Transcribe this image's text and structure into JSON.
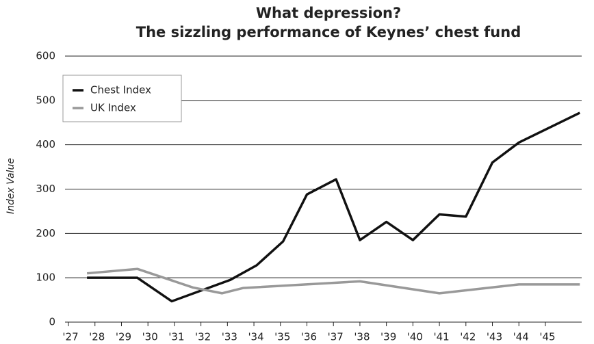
{
  "chart_data": {
    "type": "line",
    "title": "What depression?",
    "subtitle": "The sizzling performance of Keynes’ chest fund",
    "y_label": "Index Value",
    "xlim": [
      1926.87,
      1946.37
    ],
    "ylim": [
      0,
      600
    ],
    "xticks": [
      {
        "value": 1927,
        "label": "'27"
      },
      {
        "value": 1928,
        "label": "'28"
      },
      {
        "value": 1929,
        "label": "'29"
      },
      {
        "value": 1930,
        "label": "'30"
      },
      {
        "value": 1931,
        "label": "'31"
      },
      {
        "value": 1932,
        "label": "'32"
      },
      {
        "value": 1933,
        "label": "'33"
      },
      {
        "value": 1934,
        "label": "'34"
      },
      {
        "value": 1935,
        "label": "'35"
      },
      {
        "value": 1936,
        "label": "'36"
      },
      {
        "value": 1937,
        "label": "'37"
      },
      {
        "value": 1938,
        "label": "'38"
      },
      {
        "value": 1939,
        "label": "'39"
      },
      {
        "value": 1940,
        "label": "'40"
      },
      {
        "value": 1941,
        "label": "'41"
      },
      {
        "value": 1942,
        "label": "'42"
      },
      {
        "value": 1943,
        "label": "'43"
      },
      {
        "value": 1944,
        "label": "'44"
      },
      {
        "value": 1945,
        "label": "'45"
      }
    ],
    "yticks": [
      0,
      100,
      200,
      300,
      400,
      500,
      600
    ],
    "grid": true,
    "legend": "upper left",
    "series": [
      {
        "name": "Chest Index",
        "color": "#111111",
        "x": [
          1927.7,
          1929.6,
          1930.9,
          1933.1,
          1934.1,
          1935.1,
          1936.0,
          1937.1,
          1938.0,
          1939.0,
          1940.0,
          1941.0,
          1942.0,
          1943.0,
          1944.0,
          1946.3
        ],
        "values": [
          100,
          100,
          47,
          95,
          128,
          182,
          288,
          322,
          185,
          226,
          185,
          243,
          238,
          360,
          405,
          472
        ]
      },
      {
        "name": "UK Index",
        "color": "#999999",
        "x": [
          1927.7,
          1929.6,
          1931.7,
          1932.8,
          1933.6,
          1938.0,
          1941.0,
          1944.0,
          1946.3
        ],
        "values": [
          110,
          120,
          78,
          65,
          77,
          92,
          65,
          85,
          85
        ]
      }
    ]
  }
}
